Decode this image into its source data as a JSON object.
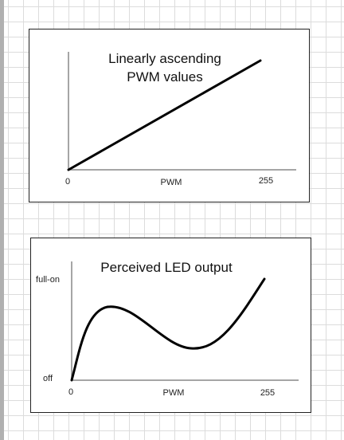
{
  "panels": [
    {
      "title": [
        "Linearly ascending",
        "PWM values"
      ],
      "x_label": "PWM",
      "x_start": "0",
      "x_end": "255"
    },
    {
      "title": [
        "Perceived LED output"
      ],
      "x_label": "PWM",
      "x_start": "0",
      "x_end": "255",
      "y_top": "full-on",
      "y_bottom": "off"
    }
  ]
}
